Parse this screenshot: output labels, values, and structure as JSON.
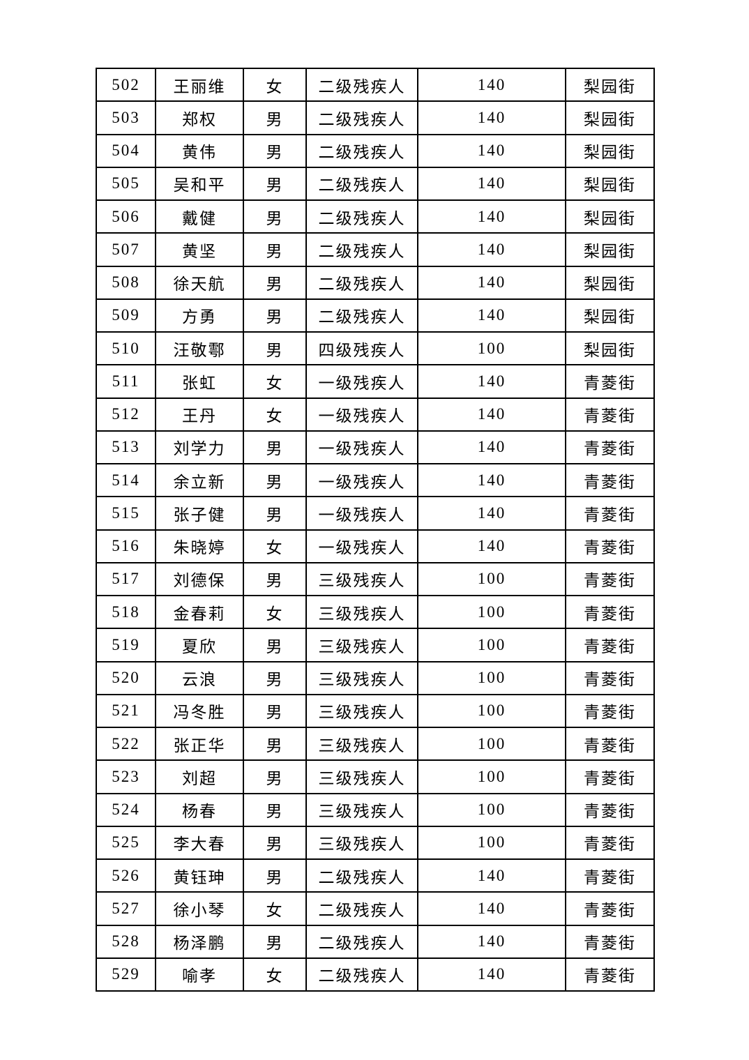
{
  "colors": {
    "page_background": "#ffffff",
    "table_border": "#000000",
    "text": "#000000"
  },
  "table": {
    "rows": [
      {
        "no": "502",
        "name": "王丽维",
        "gender": "女",
        "level": "二级残疾人",
        "amount": "140",
        "street": "梨园街"
      },
      {
        "no": "503",
        "name": "郑权",
        "gender": "男",
        "level": "二级残疾人",
        "amount": "140",
        "street": "梨园街"
      },
      {
        "no": "504",
        "name": "黄伟",
        "gender": "男",
        "level": "二级残疾人",
        "amount": "140",
        "street": "梨园街"
      },
      {
        "no": "505",
        "name": "吴和平",
        "gender": "男",
        "level": "二级残疾人",
        "amount": "140",
        "street": "梨园街"
      },
      {
        "no": "506",
        "name": "戴健",
        "gender": "男",
        "level": "二级残疾人",
        "amount": "140",
        "street": "梨园街"
      },
      {
        "no": "507",
        "name": "黄坚",
        "gender": "男",
        "level": "二级残疾人",
        "amount": "140",
        "street": "梨园街"
      },
      {
        "no": "508",
        "name": "徐天航",
        "gender": "男",
        "level": "二级残疾人",
        "amount": "140",
        "street": "梨园街"
      },
      {
        "no": "509",
        "name": "方勇",
        "gender": "男",
        "level": "二级残疾人",
        "amount": "140",
        "street": "梨园街"
      },
      {
        "no": "510",
        "name": "汪敬鄠",
        "gender": "男",
        "level": "四级残疾人",
        "amount": "100",
        "street": "梨园街"
      },
      {
        "no": "511",
        "name": "张虹",
        "gender": "女",
        "level": "一级残疾人",
        "amount": "140",
        "street": "青菱街"
      },
      {
        "no": "512",
        "name": "王丹",
        "gender": "女",
        "level": "一级残疾人",
        "amount": "140",
        "street": "青菱街"
      },
      {
        "no": "513",
        "name": "刘学力",
        "gender": "男",
        "level": "一级残疾人",
        "amount": "140",
        "street": "青菱街"
      },
      {
        "no": "514",
        "name": "余立新",
        "gender": "男",
        "level": "一级残疾人",
        "amount": "140",
        "street": "青菱街"
      },
      {
        "no": "515",
        "name": "张子健",
        "gender": "男",
        "level": "一级残疾人",
        "amount": "140",
        "street": "青菱街"
      },
      {
        "no": "516",
        "name": "朱晓婷",
        "gender": "女",
        "level": "一级残疾人",
        "amount": "140",
        "street": "青菱街"
      },
      {
        "no": "517",
        "name": "刘德保",
        "gender": "男",
        "level": "三级残疾人",
        "amount": "100",
        "street": "青菱街"
      },
      {
        "no": "518",
        "name": "金春莉",
        "gender": "女",
        "level": "三级残疾人",
        "amount": "100",
        "street": "青菱街"
      },
      {
        "no": "519",
        "name": "夏欣",
        "gender": "男",
        "level": "三级残疾人",
        "amount": "100",
        "street": "青菱街"
      },
      {
        "no": "520",
        "name": "云浪",
        "gender": "男",
        "level": "三级残疾人",
        "amount": "100",
        "street": "青菱街"
      },
      {
        "no": "521",
        "name": "冯冬胜",
        "gender": "男",
        "level": "三级残疾人",
        "amount": "100",
        "street": "青菱街"
      },
      {
        "no": "522",
        "name": "张正华",
        "gender": "男",
        "level": "三级残疾人",
        "amount": "100",
        "street": "青菱街"
      },
      {
        "no": "523",
        "name": "刘超",
        "gender": "男",
        "level": "三级残疾人",
        "amount": "100",
        "street": "青菱街"
      },
      {
        "no": "524",
        "name": "杨春",
        "gender": "男",
        "level": "三级残疾人",
        "amount": "100",
        "street": "青菱街"
      },
      {
        "no": "525",
        "name": "李大春",
        "gender": "男",
        "level": "三级残疾人",
        "amount": "100",
        "street": "青菱街"
      },
      {
        "no": "526",
        "name": "黄钰珅",
        "gender": "男",
        "level": "二级残疾人",
        "amount": "140",
        "street": "青菱街"
      },
      {
        "no": "527",
        "name": "徐小琴",
        "gender": "女",
        "level": "二级残疾人",
        "amount": "140",
        "street": "青菱街"
      },
      {
        "no": "528",
        "name": "杨泽鹏",
        "gender": "男",
        "level": "二级残疾人",
        "amount": "140",
        "street": "青菱街"
      },
      {
        "no": "529",
        "name": "喻孝",
        "gender": "女",
        "level": "二级残疾人",
        "amount": "140",
        "street": "青菱街"
      }
    ]
  }
}
